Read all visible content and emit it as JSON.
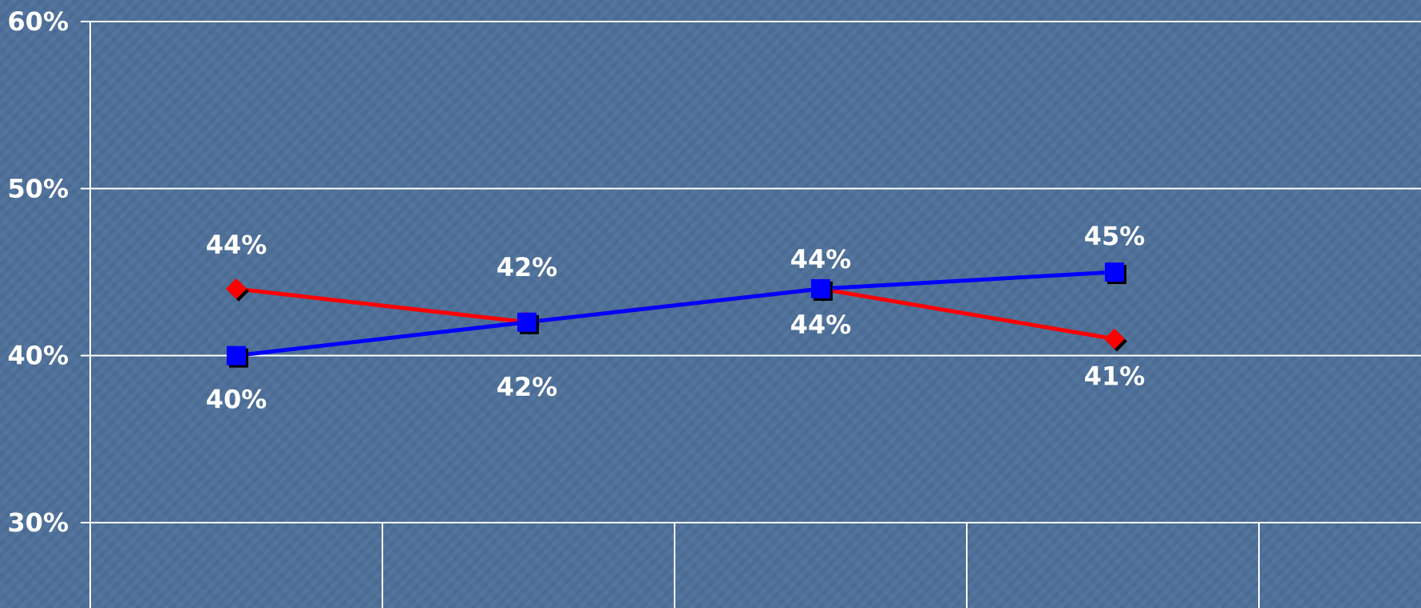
{
  "chart_data": {
    "type": "line",
    "categories": [
      "",
      "",
      "",
      ""
    ],
    "ylim": [
      0.3,
      0.6
    ],
    "yticks": [
      "30%",
      "40%",
      "50%",
      "60%"
    ],
    "ytick_values": [
      0.3,
      0.4,
      0.5,
      0.6
    ],
    "grid": true,
    "legend": "none",
    "series": [
      {
        "color": "#ff0000",
        "marker": "diamond",
        "values": [
          0.44,
          0.42,
          0.44,
          0.41
        ],
        "labels": [
          "44%",
          "42%",
          "44%",
          "41%"
        ]
      },
      {
        "color": "#0000ff",
        "marker": "square",
        "values": [
          0.4,
          0.42,
          0.44,
          0.45
        ],
        "labels": [
          "40%",
          "42%",
          "44%",
          "45%"
        ]
      }
    ]
  }
}
